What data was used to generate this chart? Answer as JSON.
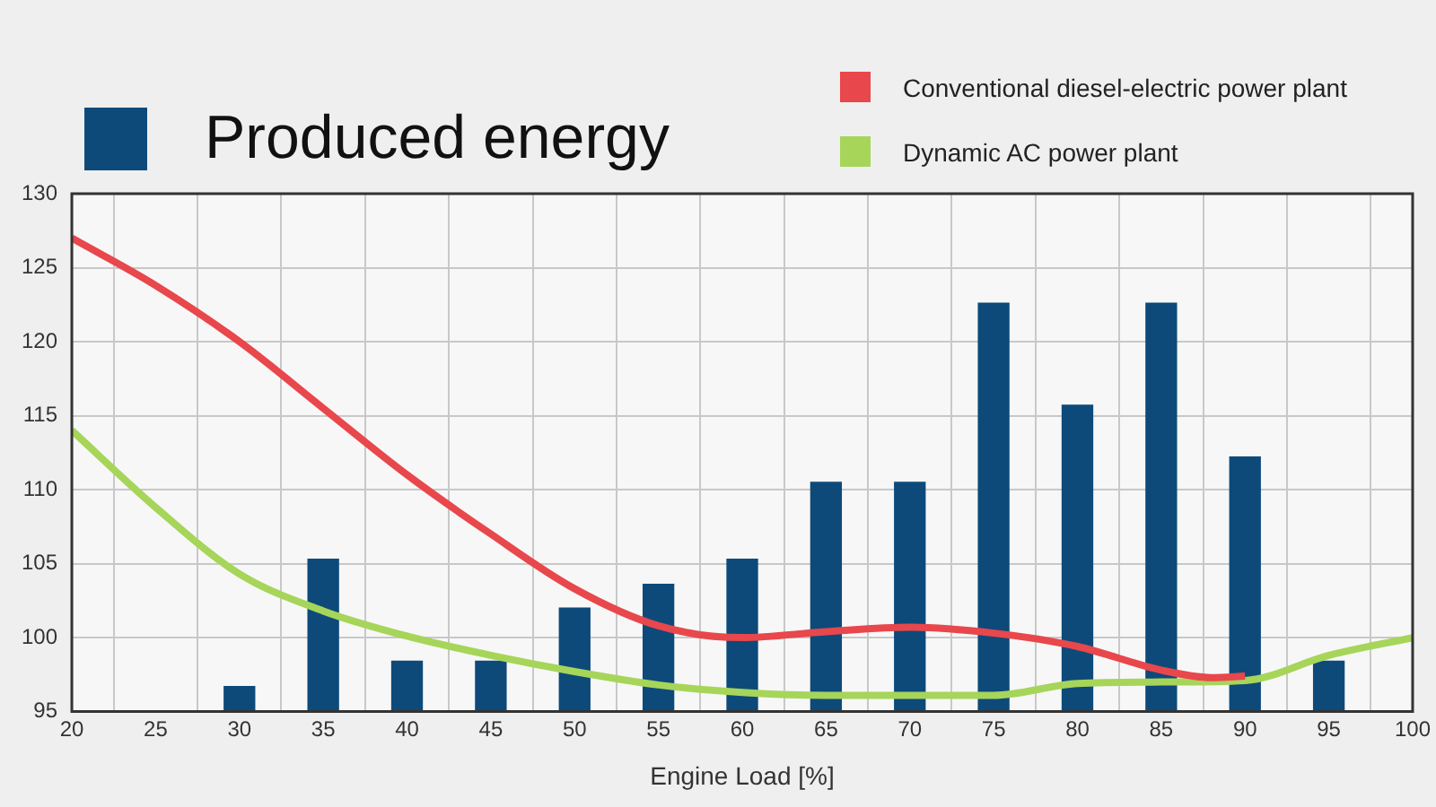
{
  "chart_data": {
    "type": "bar",
    "xlabel": "Engine Load [%]",
    "xlim": [
      20,
      100
    ],
    "xticks": [
      20,
      25,
      30,
      35,
      40,
      45,
      50,
      55,
      60,
      65,
      70,
      75,
      80,
      85,
      90,
      95,
      100
    ],
    "ylim": [
      95,
      130
    ],
    "yticks": [
      95,
      100,
      105,
      110,
      115,
      120,
      125,
      130
    ],
    "grid": true,
    "legend": "top",
    "marker": "none",
    "line_style": "solid",
    "series": [
      {
        "name": "Produced energy",
        "color": "#0d4a7a",
        "x": [
          30,
          35,
          40,
          45,
          50,
          55,
          60,
          65,
          70,
          75,
          80,
          85,
          90,
          95
        ],
        "values": [
          96.7,
          105.3,
          98.4,
          98.4,
          102,
          103.6,
          105.3,
          110.5,
          110.5,
          122.6,
          115.7,
          122.6,
          112.2,
          98.4
        ]
      },
      {
        "name": "Conventional diesel-electric power plant",
        "type": "line",
        "color": "#e8474c",
        "x": [
          20,
          25,
          30,
          35,
          40,
          45,
          50,
          55,
          60,
          65,
          70,
          75,
          80,
          85,
          88,
          90
        ],
        "values": [
          127,
          123.8,
          120,
          115.5,
          111,
          107,
          103.3,
          100.8,
          100,
          100.4,
          100.7,
          100.3,
          99.4,
          97.8,
          97.3,
          97.4
        ]
      },
      {
        "name": "Dynamic AC power plant",
        "type": "line",
        "color": "#a6d55a",
        "x": [
          20,
          25,
          30,
          35,
          40,
          45,
          50,
          55,
          60,
          65,
          70,
          75,
          80,
          85,
          90,
          95,
          100
        ],
        "values": [
          114,
          108.8,
          104.3,
          101.8,
          100.1,
          98.8,
          97.7,
          96.8,
          96.3,
          96.1,
          96.1,
          96.1,
          96.9,
          97,
          97.1,
          98.8,
          100
        ]
      }
    ]
  }
}
